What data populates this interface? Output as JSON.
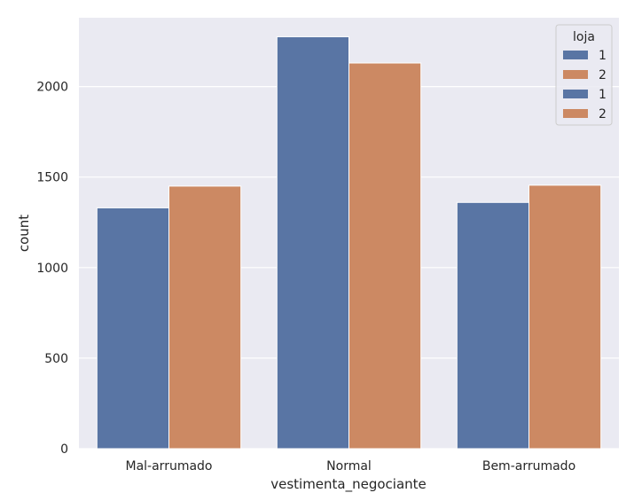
{
  "chart_data": {
    "type": "bar",
    "title": "",
    "xlabel": "vestimenta_negociante",
    "ylabel": "count",
    "categories": [
      "Mal-arrumado",
      "Normal",
      "Bem-arrumado"
    ],
    "series": [
      {
        "name": "1",
        "color": "#5975a4",
        "values": [
          1330,
          2275,
          1360
        ]
      },
      {
        "name": "2",
        "color": "#cc8963",
        "values": [
          1450,
          2130,
          1455
        ]
      }
    ],
    "yticks": [
      0,
      500,
      1000,
      1500,
      2000
    ],
    "ylim": [
      0,
      2380
    ],
    "grid": true,
    "background": "#eaeaf2",
    "legend": {
      "title": "loja",
      "placement": "top-right",
      "entries": [
        {
          "label": "1",
          "color": "#5975a4"
        },
        {
          "label": "2",
          "color": "#cc8963"
        },
        {
          "label": "1",
          "color": "#5975a4"
        },
        {
          "label": "2",
          "color": "#cc8963"
        }
      ]
    }
  }
}
